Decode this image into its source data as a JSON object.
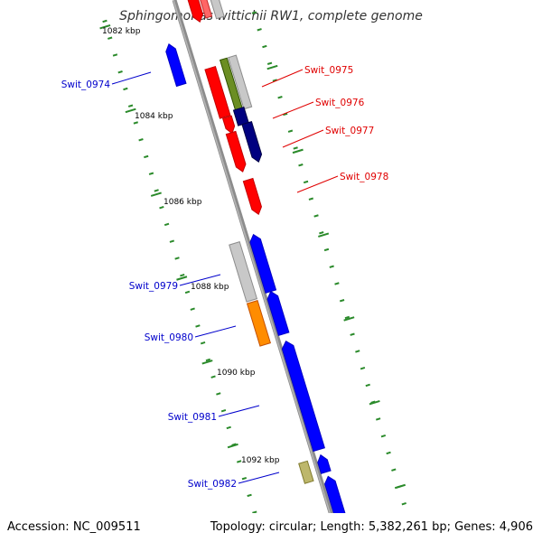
{
  "title": "Sphingomonas wittichii RW1, complete genome",
  "footer": {
    "accession": "Accession: NC_009511",
    "summary": "Topology: circular; Length: 5,382,261 bp; Genes: 4,906"
  },
  "colors": {
    "backbone": "#8c8c8c",
    "tick": "#2a8a2a",
    "forward_label": "#e00000",
    "reverse_label": "#0000cc",
    "red": "#ff0000",
    "blue": "#0000ff",
    "navy": "#000080",
    "gray": "#c8c8c8",
    "olive": "#6b8e23",
    "orange": "#ff8c00",
    "khaki": "#bdb76b",
    "pink": "#ff6666"
  },
  "kbp_labels": [
    "1082 kbp",
    "1084 kbp",
    "1086 kbp",
    "1088 kbp",
    "1090 kbp",
    "1092 kbp"
  ],
  "gene_labels": [
    {
      "name": "Swit_0974",
      "strand": "reverse"
    },
    {
      "name": "Swit_0975",
      "strand": "forward"
    },
    {
      "name": "Swit_0976",
      "strand": "forward"
    },
    {
      "name": "Swit_0977",
      "strand": "forward"
    },
    {
      "name": "Swit_0978",
      "strand": "forward"
    },
    {
      "name": "Swit_0979",
      "strand": "reverse"
    },
    {
      "name": "Swit_0980",
      "strand": "reverse"
    },
    {
      "name": "Swit_0981",
      "strand": "reverse"
    },
    {
      "name": "Swit_0982",
      "strand": "reverse"
    }
  ]
}
